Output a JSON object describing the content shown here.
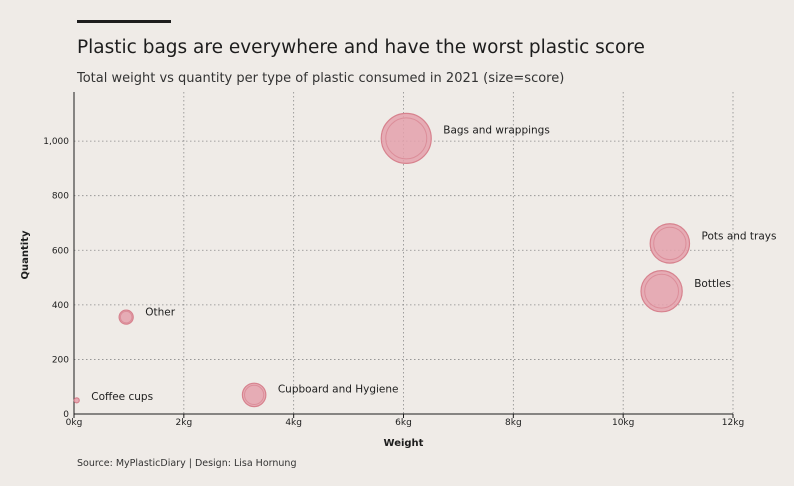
{
  "header": {
    "title": "Plastic bags are everywhere and have the worst plastic score",
    "subtitle": "Total weight vs quantity per type of plastic consumed in 2021 (size=score)"
  },
  "footer": {
    "source": "Source: MyPlasticDiary  |  Design: Lisa Hornung"
  },
  "colors": {
    "background": "#efebe7",
    "bubble_fill": "#e4a1ab",
    "bubble_stroke": "#d7828e",
    "grid": "#8a8a8a"
  },
  "chart_data": {
    "type": "scatter",
    "title": "Plastic bags are everywhere and have the worst plastic score",
    "subtitle": "Total weight vs quantity per type of plastic consumed in 2021 (size=score)",
    "xlabel": "Weight",
    "ylabel": "Quantity",
    "xlim": [
      0,
      12
    ],
    "ylim": [
      0,
      1180
    ],
    "x_ticks": [
      0,
      2,
      4,
      6,
      8,
      10,
      12
    ],
    "x_tick_labels": [
      "0kg",
      "2kg",
      "4kg",
      "6kg",
      "8kg",
      "10kg",
      "12kg"
    ],
    "y_ticks": [
      0,
      200,
      400,
      600,
      800,
      1000
    ],
    "y_tick_labels": [
      "0",
      "200",
      "400",
      "600",
      "800",
      "1,000"
    ],
    "grid": true,
    "size_encoding": "score",
    "points": [
      {
        "label": "Bags and wrappings",
        "x": 6.05,
        "y": 1010,
        "size": 100
      },
      {
        "label": "Pots and trays",
        "x": 10.85,
        "y": 625,
        "size": 62
      },
      {
        "label": "Bottles",
        "x": 10.7,
        "y": 450,
        "size": 68
      },
      {
        "label": "Other",
        "x": 0.95,
        "y": 355,
        "size": 8
      },
      {
        "label": "Cupboard and Hygiene",
        "x": 3.28,
        "y": 70,
        "size": 22
      },
      {
        "label": "Coffee cups",
        "x": 0.05,
        "y": 50,
        "size": 1
      }
    ]
  }
}
